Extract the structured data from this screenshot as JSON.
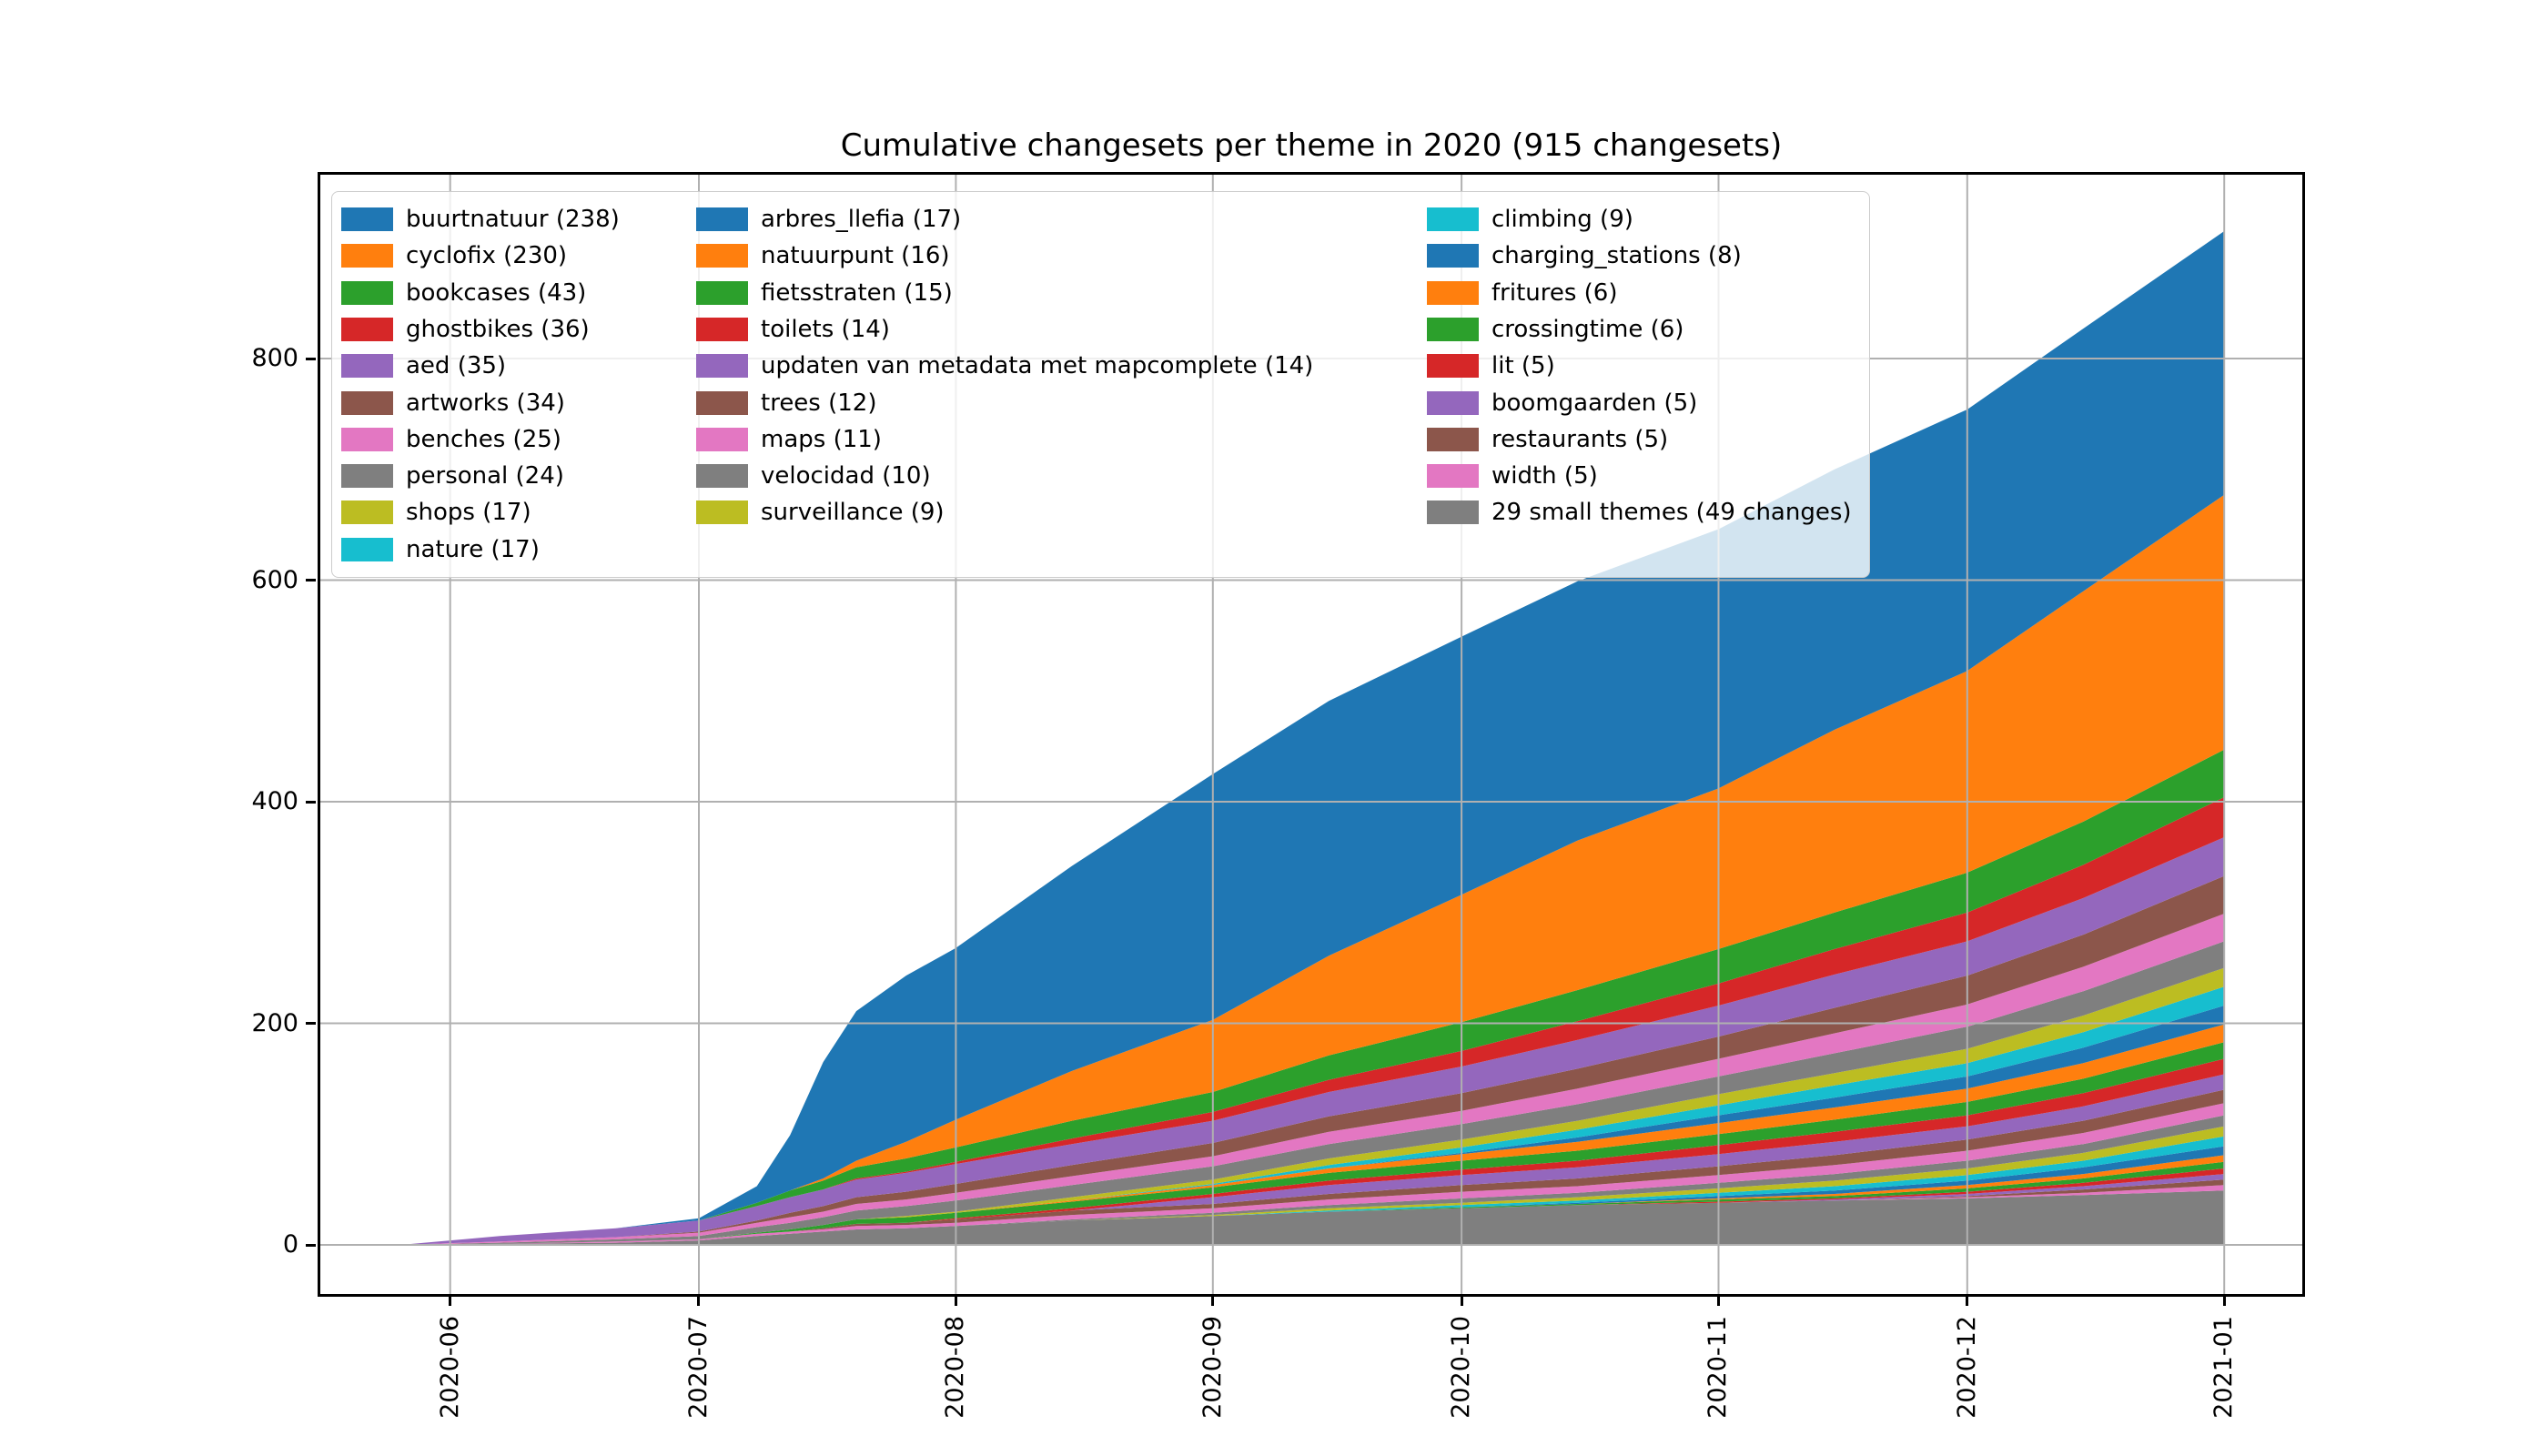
{
  "title": "Cumulative changesets per theme in 2020 (915 changesets)",
  "total_changesets": 915,
  "axes": {
    "y_ticks": [
      {
        "label": "0",
        "value": 0
      },
      {
        "label": "200",
        "value": 200
      },
      {
        "label": "400",
        "value": 400
      },
      {
        "label": "600",
        "value": 600
      },
      {
        "label": "800",
        "value": 800
      }
    ],
    "x_ticks": [
      {
        "label": "2020-06",
        "day": 6
      },
      {
        "label": "2020-07",
        "day": 36
      },
      {
        "label": "2020-08",
        "day": 67
      },
      {
        "label": "2020-09",
        "day": 98
      },
      {
        "label": "2020-10",
        "day": 128
      },
      {
        "label": "2020-11",
        "day": 159
      },
      {
        "label": "2020-12",
        "day": 189
      },
      {
        "label": "2021-01",
        "day": 220
      }
    ],
    "grid": true,
    "grid_color": "#b0b0b0"
  },
  "legend": {
    "position": "upper left",
    "columns": [
      [
        {
          "label": "buurtnatuur (238)",
          "color": "#1f77b4"
        },
        {
          "label": "cyclofix (230)",
          "color": "#ff7f0e"
        },
        {
          "label": "bookcases (43)",
          "color": "#2ca02c"
        },
        {
          "label": "ghostbikes (36)",
          "color": "#d62728"
        },
        {
          "label": "aed (35)",
          "color": "#9467bd"
        },
        {
          "label": "artworks (34)",
          "color": "#8c564b"
        },
        {
          "label": "benches (25)",
          "color": "#e377c2"
        },
        {
          "label": "personal (24)",
          "color": "#7f7f7f"
        },
        {
          "label": "shops (17)",
          "color": "#bcbd22"
        },
        {
          "label": "nature (17)",
          "color": "#17becf"
        }
      ],
      [
        {
          "label": "arbres_llefia (17)",
          "color": "#1f77b4"
        },
        {
          "label": "natuurpunt (16)",
          "color": "#ff7f0e"
        },
        {
          "label": "fietsstraten (15)",
          "color": "#2ca02c"
        },
        {
          "label": "toilets (14)",
          "color": "#d62728"
        },
        {
          "label": "updaten van metadata met mapcomplete (14)",
          "color": "#9467bd"
        },
        {
          "label": "trees (12)",
          "color": "#8c564b"
        },
        {
          "label": "maps (11)",
          "color": "#e377c2"
        },
        {
          "label": "velocidad (10)",
          "color": "#7f7f7f"
        },
        {
          "label": "surveillance (9)",
          "color": "#bcbd22"
        }
      ],
      [
        {
          "label": "climbing (9)",
          "color": "#17becf"
        },
        {
          "label": "charging_stations (8)",
          "color": "#1f77b4"
        },
        {
          "label": "fritures (6)",
          "color": "#ff7f0e"
        },
        {
          "label": "crossingtime (6)",
          "color": "#2ca02c"
        },
        {
          "label": "lit (5)",
          "color": "#d62728"
        },
        {
          "label": "boomgaarden (5)",
          "color": "#9467bd"
        },
        {
          "label": "restaurants (5)",
          "color": "#8c564b"
        },
        {
          "label": "width (5)",
          "color": "#e377c2"
        },
        {
          "label": "29 small themes (49 changes)",
          "color": "#7f7f7f"
        }
      ]
    ]
  },
  "chart_data": {
    "type": "area",
    "stacked": true,
    "title": "Cumulative changesets per theme in 2020 (915 changesets)",
    "xlabel": "",
    "ylabel": "",
    "x_unit": "days since 2020-05-26",
    "x": [
      0,
      12,
      26,
      36,
      43,
      47,
      51,
      55,
      61,
      67,
      81,
      98,
      112,
      128,
      142,
      159,
      173,
      189,
      203,
      220
    ],
    "x_dates": [
      "2020-05-26",
      "2020-06-07",
      "2020-06-21",
      "2020-07-01",
      "2020-07-08",
      "2020-07-12",
      "2020-07-16",
      "2020-07-20",
      "2020-07-26",
      "2020-08-01",
      "2020-08-15",
      "2020-09-01",
      "2020-09-15",
      "2020-10-01",
      "2020-10-15",
      "2020-11-01",
      "2020-11-15",
      "2020-12-01",
      "2020-12-15",
      "2021-01-01"
    ],
    "ylim": [
      -45,
      966
    ],
    "xrange_ticks": [
      "2020-06",
      "2021-01"
    ],
    "legend_position": "upper left",
    "grid": true,
    "stacking_order": "bottom to top; legend lists top-of-stack first",
    "series": [
      {
        "name": "29 small themes",
        "legend_label": "29 small themes (49 changes)",
        "color": "#7f7f7f",
        "total": 49,
        "cumulative": [
          0,
          1,
          2,
          4,
          8,
          10,
          12,
          14,
          15,
          17,
          22,
          26,
          30,
          33,
          36,
          38,
          40,
          42,
          45,
          49
        ]
      },
      {
        "name": "width",
        "legend_label": "width (5)",
        "color": "#e377c2",
        "total": 5,
        "cumulative": [
          0,
          0,
          0,
          0,
          0,
          0,
          0,
          0,
          0,
          0,
          0,
          0,
          0,
          0,
          0,
          0,
          0,
          1,
          2,
          5
        ]
      },
      {
        "name": "restaurants",
        "legend_label": "restaurants (5)",
        "color": "#8c564b",
        "total": 5,
        "cumulative": [
          0,
          0,
          0,
          0,
          0,
          0,
          0,
          0,
          0,
          0,
          0,
          0,
          0,
          0,
          0,
          0,
          0,
          1,
          3,
          5
        ]
      },
      {
        "name": "boomgaarden",
        "legend_label": "boomgaarden (5)",
        "color": "#9467bd",
        "total": 5,
        "cumulative": [
          0,
          0,
          0,
          0,
          0,
          0,
          0,
          0,
          0,
          0,
          0,
          0,
          0,
          0,
          0,
          0,
          1,
          2,
          3,
          5
        ]
      },
      {
        "name": "lit",
        "legend_label": "lit (5)",
        "color": "#d62728",
        "total": 5,
        "cumulative": [
          0,
          0,
          0,
          0,
          0,
          0,
          0,
          0,
          0,
          0,
          0,
          0,
          0,
          0,
          0,
          1,
          1,
          2,
          3,
          5
        ]
      },
      {
        "name": "crossingtime",
        "legend_label": "crossingtime (6)",
        "color": "#2ca02c",
        "total": 6,
        "cumulative": [
          0,
          0,
          0,
          0,
          0,
          0,
          0,
          0,
          0,
          0,
          0,
          0,
          0,
          1,
          1,
          2,
          2,
          3,
          4,
          6
        ]
      },
      {
        "name": "fritures",
        "legend_label": "fritures (6)",
        "color": "#ff7f0e",
        "total": 6,
        "cumulative": [
          0,
          0,
          0,
          0,
          0,
          0,
          0,
          0,
          0,
          0,
          0,
          0,
          0,
          0,
          0,
          1,
          2,
          3,
          4,
          6
        ]
      },
      {
        "name": "charging_stations",
        "legend_label": "charging_stations (8)",
        "color": "#1f77b4",
        "total": 8,
        "cumulative": [
          0,
          0,
          0,
          0,
          0,
          0,
          0,
          0,
          0,
          0,
          0,
          0,
          0,
          0,
          1,
          2,
          3,
          4,
          6,
          8
        ]
      },
      {
        "name": "climbing",
        "legend_label": "climbing (9)",
        "color": "#17becf",
        "total": 9,
        "cumulative": [
          0,
          0,
          0,
          0,
          0,
          0,
          0,
          0,
          0,
          0,
          0,
          0,
          1,
          2,
          2,
          3,
          4,
          5,
          6,
          9
        ]
      },
      {
        "name": "surveillance",
        "legend_label": "surveillance (9)",
        "color": "#bcbd22",
        "total": 9,
        "cumulative": [
          0,
          0,
          0,
          0,
          0,
          0,
          0,
          0,
          0,
          0,
          0,
          1,
          2,
          2,
          3,
          4,
          5,
          6,
          7,
          9
        ]
      },
      {
        "name": "velocidad",
        "legend_label": "velocidad (10)",
        "color": "#7f7f7f",
        "total": 10,
        "cumulative": [
          0,
          0,
          0,
          0,
          0,
          0,
          0,
          0,
          0,
          0,
          1,
          2,
          3,
          4,
          4,
          5,
          6,
          7,
          8,
          10
        ]
      },
      {
        "name": "maps",
        "legend_label": "maps (11)",
        "color": "#e377c2",
        "total": 11,
        "cumulative": [
          0,
          0,
          1,
          1,
          2,
          2,
          2,
          3,
          3,
          3,
          4,
          4,
          5,
          6,
          6,
          7,
          8,
          9,
          10,
          11
        ]
      },
      {
        "name": "trees",
        "legend_label": "trees (12)",
        "color": "#8c564b",
        "total": 12,
        "cumulative": [
          0,
          0,
          0,
          0,
          0,
          0,
          1,
          2,
          2,
          3,
          4,
          4,
          5,
          6,
          7,
          8,
          9,
          10,
          11,
          12
        ]
      },
      {
        "name": "updaten van metadata met mapcomplete",
        "legend_label": "updaten van metadata met mapcomplete (14)",
        "color": "#9467bd",
        "total": 14,
        "cumulative": [
          0,
          0,
          0,
          0,
          0,
          0,
          0,
          0,
          0,
          0,
          0,
          6,
          8,
          9,
          10,
          11,
          12,
          12,
          13,
          14
        ]
      },
      {
        "name": "toilets",
        "legend_label": "toilets (14)",
        "color": "#d62728",
        "total": 14,
        "cumulative": [
          0,
          0,
          0,
          0,
          0,
          0,
          0,
          0,
          0,
          1,
          2,
          3,
          4,
          5,
          6,
          8,
          9,
          10,
          12,
          14
        ]
      },
      {
        "name": "fietsstraten",
        "legend_label": "fietsstraten (15)",
        "color": "#2ca02c",
        "total": 15,
        "cumulative": [
          0,
          0,
          0,
          0,
          1,
          2,
          3,
          4,
          5,
          5,
          6,
          6,
          7,
          8,
          9,
          10,
          11,
          12,
          13,
          15
        ]
      },
      {
        "name": "natuurpunt",
        "legend_label": "natuurpunt (16)",
        "color": "#ff7f0e",
        "total": 16,
        "cumulative": [
          0,
          0,
          0,
          0,
          0,
          0,
          0,
          0,
          0,
          0,
          1,
          2,
          4,
          6,
          8,
          10,
          11,
          12,
          14,
          16
        ]
      },
      {
        "name": "arbres_llefia",
        "legend_label": "arbres_llefia (17)",
        "color": "#1f77b4",
        "total": 17,
        "cumulative": [
          0,
          0,
          0,
          0,
          0,
          0,
          0,
          0,
          0,
          0,
          0,
          0,
          0,
          1,
          4,
          7,
          9,
          11,
          14,
          17
        ]
      },
      {
        "name": "nature",
        "legend_label": "nature (17)",
        "color": "#17becf",
        "total": 17,
        "cumulative": [
          0,
          0,
          0,
          0,
          0,
          0,
          0,
          0,
          0,
          0,
          0,
          1,
          3,
          5,
          7,
          9,
          11,
          12,
          14,
          17
        ]
      },
      {
        "name": "shops",
        "legend_label": "shops (17)",
        "color": "#bcbd22",
        "total": 17,
        "cumulative": [
          0,
          0,
          0,
          0,
          0,
          0,
          0,
          0,
          1,
          1,
          3,
          4,
          6,
          7,
          8,
          10,
          11,
          13,
          15,
          17
        ]
      },
      {
        "name": "personal",
        "legend_label": "personal (24)",
        "color": "#7f7f7f",
        "total": 24,
        "cumulative": [
          0,
          1,
          2,
          3,
          5,
          6,
          7,
          8,
          9,
          10,
          11,
          12,
          13,
          14,
          15,
          16,
          18,
          20,
          22,
          24
        ]
      },
      {
        "name": "benches",
        "legend_label": "benches (25)",
        "color": "#e377c2",
        "total": 25,
        "cumulative": [
          0,
          1,
          2,
          3,
          4,
          5,
          5,
          6,
          6,
          7,
          8,
          9,
          11,
          12,
          14,
          16,
          18,
          20,
          22,
          25
        ]
      },
      {
        "name": "artworks",
        "legend_label": "artworks (34)",
        "color": "#8c564b",
        "total": 34,
        "cumulative": [
          0,
          0,
          0,
          1,
          2,
          4,
          5,
          6,
          7,
          8,
          10,
          12,
          14,
          16,
          18,
          20,
          23,
          26,
          29,
          34
        ]
      },
      {
        "name": "aed",
        "legend_label": "aed (35)",
        "color": "#9467bd",
        "total": 35,
        "cumulative": [
          0,
          5,
          8,
          10,
          13,
          14,
          15,
          16,
          17,
          18,
          19,
          20,
          22,
          24,
          26,
          28,
          30,
          31,
          33,
          35
        ]
      },
      {
        "name": "ghostbikes",
        "legend_label": "ghostbikes (36)",
        "color": "#d62728",
        "total": 36,
        "cumulative": [
          0,
          0,
          0,
          0,
          0,
          0,
          0,
          1,
          1,
          2,
          5,
          8,
          11,
          14,
          17,
          20,
          23,
          26,
          30,
          36
        ]
      },
      {
        "name": "bookcases",
        "legend_label": "bookcases (43)",
        "color": "#2ca02c",
        "total": 43,
        "cumulative": [
          0,
          0,
          0,
          0,
          3,
          6,
          8,
          10,
          12,
          13,
          16,
          18,
          22,
          26,
          28,
          31,
          33,
          36,
          39,
          43
        ]
      },
      {
        "name": "cyclofix",
        "legend_label": "cyclofix (230)",
        "color": "#ff7f0e",
        "total": 230,
        "cumulative": [
          0,
          0,
          0,
          0,
          0,
          0,
          2,
          6,
          15,
          25,
          45,
          65,
          90,
          115,
          135,
          145,
          165,
          182,
          208,
          230
        ]
      },
      {
        "name": "buurtnatuur",
        "legend_label": "buurtnatuur (238)",
        "color": "#1f77b4",
        "total": 238,
        "cumulative": [
          0,
          0,
          0,
          2,
          15,
          50,
          105,
          135,
          150,
          155,
          185,
          222,
          230,
          233,
          234,
          234,
          235,
          236,
          237,
          238
        ]
      }
    ],
    "palette_tab10": [
      "#1f77b4",
      "#ff7f0e",
      "#2ca02c",
      "#d62728",
      "#9467bd",
      "#8c564b",
      "#e377c2",
      "#7f7f7f",
      "#bcbd22",
      "#17becf"
    ]
  }
}
